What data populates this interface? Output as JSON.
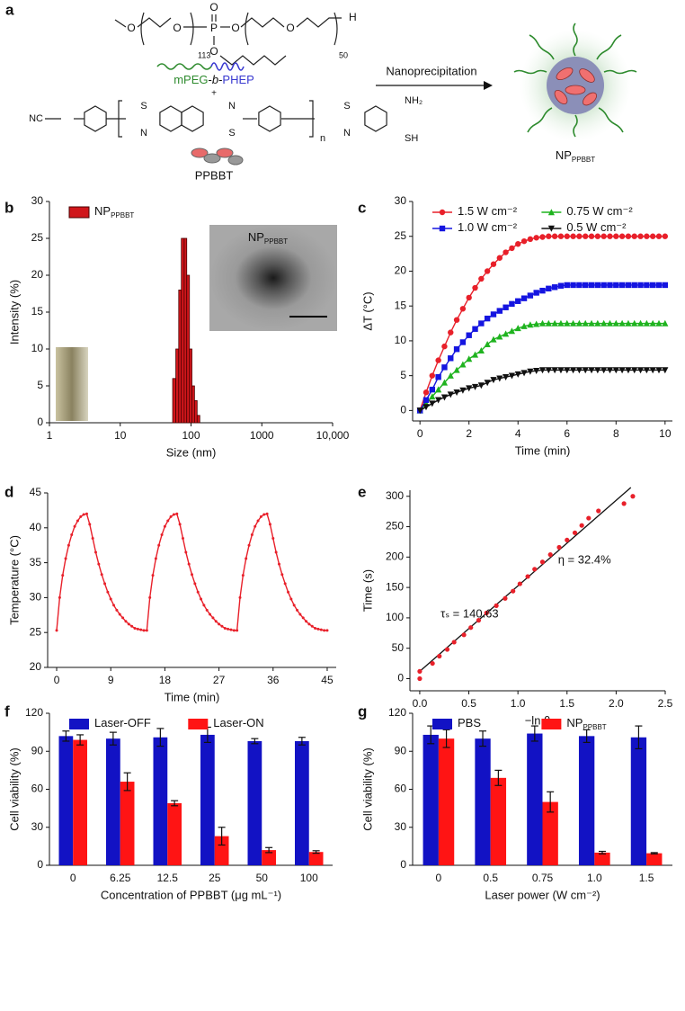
{
  "scheme": {
    "label": "a",
    "arrow_label": "Nanoprecipitation",
    "polymer": [
      "mPEG",
      "-",
      "b",
      "-",
      "PHEP"
    ],
    "plus": "+",
    "dye": "PPBBT",
    "product": "NP",
    "product_subscript": "PPBBT",
    "atoms": [
      "O",
      "O",
      "P",
      "O",
      "O",
      "O",
      "O",
      "H",
      "113",
      "50",
      "NC",
      "S",
      "N",
      "N",
      "S",
      "n",
      "S",
      "N",
      "NH₂",
      "SH"
    ]
  },
  "chart_data": [
    {
      "type": "histogram",
      "panel": "b",
      "x_label": "Size (nm)",
      "y_label": "Intensity (%)",
      "log_x": true,
      "bins": [
        55,
        61,
        67,
        73,
        80,
        87,
        95,
        103,
        112,
        122,
        133
      ],
      "series": [
        {
          "name": "NP",
          "name_subscript": "PPBBT",
          "color": "#d0161b",
          "values": [
            6,
            10,
            18,
            25,
            25,
            20,
            10,
            5,
            3,
            1
          ]
        }
      ],
      "inset_label": "NP",
      "inset_label_subscript": "PPBBT",
      "xlim": [
        1,
        10000
      ],
      "xticks": [
        1,
        10,
        100,
        1000,
        {
          "value": 10000,
          "label": "10,000"
        }
      ],
      "ylim": [
        0,
        30
      ],
      "yticks": [
        0,
        5,
        10,
        15,
        20,
        25,
        30
      ],
      "legend": "upper left"
    },
    {
      "type": "line",
      "panel": "c",
      "x_label": "Time (min)",
      "y_label": "ΔT (°C)",
      "x": [
        0,
        0.25,
        0.5,
        0.75,
        1,
        1.25,
        1.5,
        1.75,
        2,
        2.25,
        2.5,
        2.75,
        3,
        3.25,
        3.5,
        3.75,
        4,
        4.25,
        4.5,
        4.75,
        5,
        5.25,
        5.5,
        5.75,
        6,
        6.25,
        6.5,
        6.75,
        7,
        7.25,
        7.5,
        7.75,
        8,
        8.25,
        8.5,
        8.75,
        9,
        9.25,
        9.5,
        9.75,
        10
      ],
      "series": [
        {
          "name": "1.5 W cm⁻²",
          "color": "#e8202a",
          "marker": "circle",
          "values": [
            0,
            2.6,
            5,
            7.2,
            9.2,
            11.2,
            13,
            14.6,
            16.2,
            17.6,
            18.9,
            20,
            21,
            21.9,
            22.7,
            23.3,
            23.9,
            24.3,
            24.6,
            24.8,
            24.9,
            25,
            25,
            25,
            25,
            25,
            25,
            25,
            25,
            25,
            25,
            25,
            25,
            25,
            25,
            25,
            25,
            25,
            25,
            25,
            25
          ]
        },
        {
          "name": "0.75 W cm⁻²",
          "color": "#1fb31f",
          "marker": "triangle",
          "values": [
            0,
            1,
            2,
            3,
            4,
            5,
            5.8,
            6.6,
            7.4,
            8,
            8.6,
            9.5,
            10.2,
            10.6,
            11,
            11.4,
            11.8,
            12.1,
            12.3,
            12.4,
            12.5,
            12.5,
            12.5,
            12.5,
            12.5,
            12.5,
            12.5,
            12.5,
            12.5,
            12.5,
            12.5,
            12.5,
            12.5,
            12.5,
            12.5,
            12.5,
            12.5,
            12.5,
            12.5,
            12.5,
            12.5
          ]
        },
        {
          "name": "1.0 W cm⁻²",
          "color": "#1515e0",
          "marker": "square",
          "values": [
            0,
            1.5,
            3,
            4.8,
            6.2,
            7.5,
            8.8,
            9.8,
            10.8,
            11.7,
            12.5,
            13.2,
            13.8,
            14.3,
            14.8,
            15.3,
            15.7,
            16.1,
            16.5,
            16.9,
            17.2,
            17.5,
            17.7,
            17.9,
            18,
            18,
            18,
            18,
            18,
            18,
            18,
            18,
            18,
            18,
            18,
            18,
            18,
            18,
            18,
            18,
            18
          ]
        },
        {
          "name": "0.5 W cm⁻²",
          "color": "#111111",
          "marker": "triangle-down",
          "values": [
            0,
            0.5,
            1,
            1.5,
            1.9,
            2.3,
            2.6,
            2.9,
            3.2,
            3.4,
            3.6,
            4,
            4.4,
            4.6,
            4.8,
            5,
            5.2,
            5.4,
            5.6,
            5.7,
            5.8,
            5.8,
            5.8,
            5.8,
            5.8,
            5.8,
            5.8,
            5.8,
            5.8,
            5.8,
            5.8,
            5.8,
            5.8,
            5.8,
            5.8,
            5.8,
            5.8,
            5.8,
            5.8,
            5.8,
            5.8
          ]
        }
      ],
      "xlim": [
        -0.3,
        10.3
      ],
      "xticks": [
        0,
        2,
        4,
        6,
        8,
        10
      ],
      "ylim": [
        -1.5,
        30
      ],
      "yticks": [
        0,
        5,
        10,
        15,
        20,
        25,
        30
      ],
      "legend": "upper left"
    },
    {
      "type": "line",
      "panel": "d",
      "x_label": "Time (min)",
      "y_label": "Temperature (°C)",
      "x": [
        0,
        0.5,
        1,
        1.5,
        2,
        2.5,
        3,
        3.5,
        4,
        4.5,
        5,
        5.5,
        6,
        6.5,
        7,
        7.5,
        8,
        8.5,
        9,
        9.5,
        10,
        10.5,
        11,
        11.5,
        12,
        12.5,
        13,
        13.5,
        14,
        14.5,
        15,
        15.5,
        16,
        16.5,
        17,
        17.5,
        18,
        18.5,
        19,
        19.5,
        20,
        20.5,
        21,
        21.5,
        22,
        22.5,
        23,
        23.5,
        24,
        24.5,
        25,
        25.5,
        26,
        26.5,
        27,
        27.5,
        28,
        28.5,
        29,
        29.5,
        30,
        30.5,
        31,
        31.5,
        32,
        32.5,
        33,
        33.5,
        34,
        34.5,
        35,
        35.5,
        36,
        36.5,
        37,
        37.5,
        38,
        38.5,
        39,
        39.5,
        40,
        40.5,
        41,
        41.5,
        42,
        42.5,
        43,
        43.5,
        44,
        44.5,
        45
      ],
      "series": [
        {
          "name": null,
          "color": "#e8202a",
          "marker": "dot",
          "values": [
            25.3,
            30,
            33.2,
            35.6,
            37.5,
            39,
            40.2,
            41,
            41.6,
            41.9,
            42,
            40.5,
            38.5,
            36.5,
            34.8,
            33.3,
            32,
            30.8,
            29.8,
            28.9,
            28.2,
            27.6,
            27.1,
            26.6,
            26.2,
            25.9,
            25.6,
            25.5,
            25.4,
            25.3,
            25.3,
            30,
            33.2,
            35.6,
            37.5,
            39,
            40.2,
            41,
            41.6,
            41.9,
            42,
            40.5,
            38.5,
            36.5,
            34.8,
            33.3,
            32,
            30.8,
            29.8,
            28.9,
            28.2,
            27.6,
            27.1,
            26.6,
            26.2,
            25.9,
            25.6,
            25.5,
            25.4,
            25.3,
            25.3,
            30,
            33.2,
            35.6,
            37.5,
            39,
            40.2,
            41,
            41.6,
            41.9,
            42,
            40.5,
            38.5,
            36.5,
            34.8,
            33.3,
            32,
            30.8,
            29.8,
            28.9,
            28.2,
            27.6,
            27.1,
            26.6,
            26.2,
            25.9,
            25.6,
            25.5,
            25.4,
            25.3,
            25.3
          ]
        }
      ],
      "xlim": [
        -1.5,
        46.5
      ],
      "xticks": [
        0,
        9,
        18,
        27,
        36,
        45
      ],
      "ylim": [
        20,
        45
      ],
      "yticks": [
        20,
        25,
        30,
        35,
        40,
        45
      ]
    },
    {
      "type": "scatter",
      "panel": "e",
      "x_label": "−ln θ",
      "y_label": "Time (s)",
      "x": [
        0,
        0,
        0.13,
        0.2,
        0.28,
        0.35,
        0.45,
        0.52,
        0.6,
        0.68,
        0.78,
        0.87,
        0.95,
        1.02,
        1.1,
        1.17,
        1.25,
        1.33,
        1.42,
        1.5,
        1.58,
        1.65,
        1.72,
        1.82,
        2.08,
        2.17
      ],
      "values": [
        0,
        12,
        25,
        37,
        48,
        60,
        72,
        84,
        96,
        108,
        120,
        132,
        144,
        156,
        168,
        180,
        192,
        204,
        216,
        228,
        240,
        252,
        264,
        276,
        288,
        300
      ],
      "color": "#e8202a",
      "fit": {
        "x": [
          0,
          2.15
        ],
        "values": [
          12,
          314.4
        ],
        "color": "#111111"
      },
      "annotations": [
        "τₛ = 140.63",
        "η = 32.4%"
      ],
      "xlim": [
        -0.1,
        2.5
      ],
      "xticks": [
        {
          "value": 0,
          "label": "0.0"
        },
        0.5,
        {
          "value": 1,
          "label": "1.0"
        },
        1.5,
        {
          "value": 2,
          "label": "2.0"
        },
        2.5
      ],
      "ylim": [
        -20,
        310
      ],
      "yticks": [
        0,
        50,
        100,
        150,
        200,
        250,
        300
      ]
    },
    {
      "type": "bar",
      "panel": "f",
      "x_label": "Concentration of PPBBT (μg mL⁻¹)",
      "y_label": "Cell viability (%)",
      "categories": [
        "0",
        "6.25",
        "12.5",
        "25",
        "50",
        "100"
      ],
      "series": [
        {
          "name": "Laser-OFF",
          "color": "#1212c4",
          "values": [
            102,
            100,
            101,
            103,
            98,
            98
          ],
          "errors": [
            4,
            5,
            7,
            6,
            2,
            3
          ]
        },
        {
          "name": "Laser-ON",
          "color": "#ff1414",
          "values": [
            99,
            66,
            49,
            23,
            12,
            10.5
          ],
          "errors": [
            4,
            7,
            2,
            7,
            2,
            1
          ]
        }
      ],
      "ylim": [
        0,
        120
      ],
      "yticks": [
        0,
        30,
        60,
        90,
        120
      ],
      "legend": "upper left"
    },
    {
      "type": "bar",
      "panel": "g",
      "x_label": "Laser power (W cm⁻²)",
      "y_label": "Cell viability (%)",
      "categories": [
        "0",
        "0.5",
        "0.75",
        "1.0",
        "1.5"
      ],
      "series": [
        {
          "name": "PBS",
          "color": "#1212c4",
          "values": [
            103,
            100,
            104,
            102,
            101
          ],
          "errors": [
            7,
            6,
            6,
            5,
            9
          ]
        },
        {
          "name": "NP",
          "name_subscript": "PPBBT",
          "color": "#ff1414",
          "values": [
            100,
            69,
            50,
            10,
            9.5
          ],
          "errors": [
            7,
            6,
            8,
            1,
            0.5
          ]
        }
      ],
      "ylim": [
        0,
        120
      ],
      "yticks": [
        0,
        30,
        60,
        90,
        120
      ],
      "legend": "upper left"
    }
  ]
}
